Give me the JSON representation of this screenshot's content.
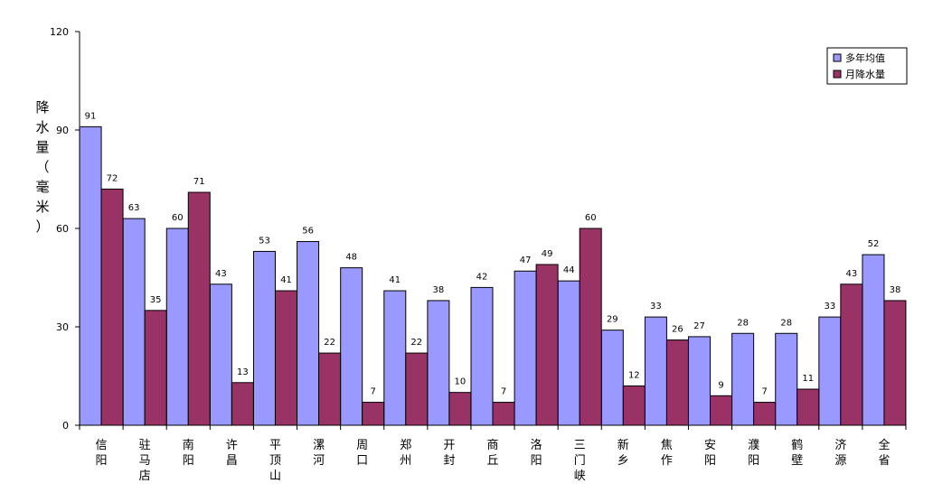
{
  "chart_data": {
    "type": "bar",
    "ylabel": "降水量（毫米）",
    "ylim": [
      0,
      120
    ],
    "yticks": [
      0,
      30,
      60,
      90,
      120
    ],
    "grid": false,
    "legend_position": "top-right",
    "categories": [
      "信阳",
      "驻马店",
      "南阳",
      "许昌",
      "平顶山",
      "漯河",
      "周口",
      "郑州",
      "开封",
      "商丘",
      "洛阳",
      "三门峡",
      "新乡",
      "焦作",
      "安阳",
      "濮阳",
      "鹤壁",
      "济源",
      "全省"
    ],
    "series": [
      {
        "name": "多年均值",
        "color": "#9999ff",
        "values": [
          91,
          63,
          60,
          43,
          53,
          56,
          48,
          41,
          38,
          42,
          47,
          44,
          29,
          33,
          27,
          28,
          28,
          33,
          52
        ]
      },
      {
        "name": "月降水量",
        "color": "#993366",
        "values": [
          72,
          35,
          71,
          13,
          41,
          22,
          7,
          22,
          10,
          7,
          49,
          60,
          12,
          26,
          9,
          7,
          11,
          43,
          38
        ]
      }
    ]
  }
}
